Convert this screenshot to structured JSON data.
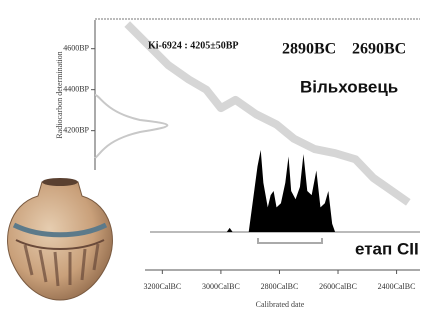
{
  "chart_data": {
    "type": "line",
    "annotations": {
      "sample": "Ki-6924 : 4205±50BP",
      "range_start": "2890BC",
      "range_end": "2690BC",
      "site": "Вільховець",
      "stage": "етап СІІ"
    },
    "y_label": "Radiocarbon determination",
    "x_label": "Calibrated date",
    "xlim": [
      3430,
      2320
    ],
    "ylim": [
      3520,
      4740
    ],
    "xticks": [
      {
        "value": 3200,
        "label": "3200CalBC"
      },
      {
        "value": 3000,
        "label": "3000CalBC"
      },
      {
        "value": 2800,
        "label": "2800CalBC"
      },
      {
        "value": 2600,
        "label": "2600CalBC"
      },
      {
        "value": 2400,
        "label": "2400CalBC"
      }
    ],
    "yticks": [
      {
        "value": 4600,
        "label": "4600BP"
      },
      {
        "value": 4400,
        "label": "4400BP"
      },
      {
        "value": 4200,
        "label": "4200BP"
      }
    ],
    "series": [
      {
        "color": "#d6d6d6",
        "x": [
          3320,
          3250,
          3180,
          3110,
          3050,
          3000,
          2950,
          2880,
          2810,
          2750,
          2680,
          2610,
          2540,
          2480,
          2410,
          2360
        ],
        "values": [
          4720,
          4620,
          4520,
          4450,
          4400,
          4310,
          4350,
          4280,
          4230,
          4160,
          4110,
          4090,
          4060,
          3970,
          3900,
          3850
        ]
      }
    ],
    "distribution": {
      "color": "#000000",
      "x": [
        2980,
        2970,
        2960,
        2905,
        2890,
        2875,
        2864,
        2855,
        2840,
        2830,
        2820,
        2810,
        2795,
        2780,
        2769,
        2760,
        2745,
        2730,
        2718,
        2705,
        2690,
        2674,
        2660,
        2645,
        2633,
        2620,
        2610
      ],
      "values": [
        0,
        0.05,
        0,
        0,
        0.4,
        0.8,
        1,
        0.6,
        0.3,
        0.45,
        0.5,
        0.3,
        0.35,
        0.6,
        0.92,
        0.5,
        0.4,
        0.55,
        0.95,
        0.5,
        0.45,
        0.75,
        0.3,
        0.35,
        0.5,
        0.1,
        0
      ]
    }
  }
}
